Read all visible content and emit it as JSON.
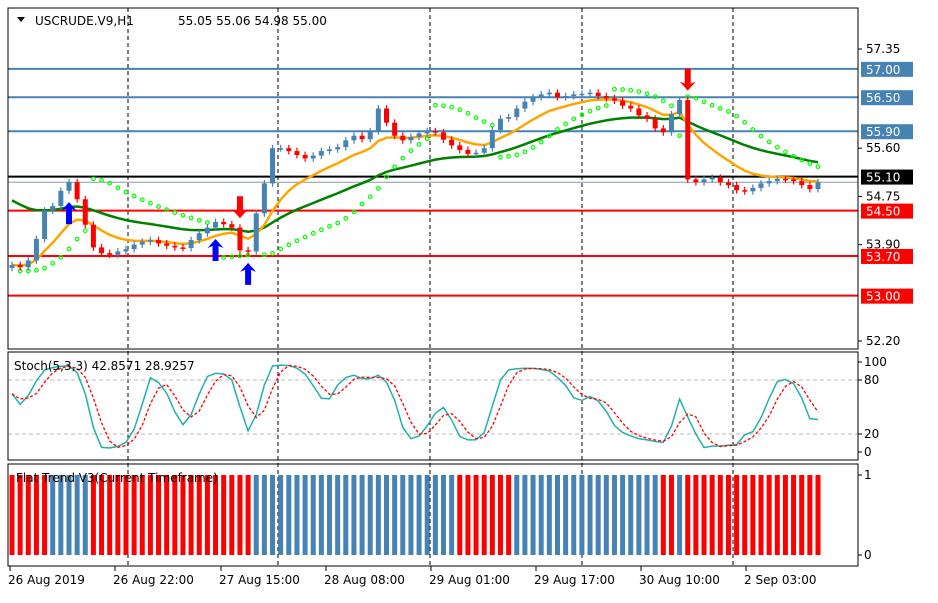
{
  "header": {
    "menu_icon": "triangle-down-icon",
    "symbol": "USCRUDE.V9,H1",
    "ohlc": "55.05 55.06 54.98 55.00"
  },
  "colors": {
    "bull": "#4682b4",
    "bear": "#ff0000",
    "ma_fast": "#ffa500",
    "ma_slow": "#008000",
    "sar": "#00ff00",
    "stoch_main": "#20b2aa",
    "stoch_signal": "#ff0000",
    "level_blue": "#4682b4",
    "level_red": "#ff0000",
    "level_black": "#000000"
  },
  "chart_data": [
    {
      "type": "candlestick",
      "title": "USCRUDE.V9,H1",
      "price_ticks": [
        "57.35",
        "55.60",
        "54.75",
        "53.90",
        "52.20"
      ],
      "price_tick_values": [
        57.35,
        55.6,
        54.75,
        53.9,
        52.2
      ],
      "ylim": [
        52.2,
        57.35
      ],
      "time_labels": [
        "26 Aug 2019",
        "26 Aug 22:00",
        "27 Aug 15:00",
        "28 Aug 08:00",
        "29 Aug 01:00",
        "29 Aug 17:00",
        "30 Aug 10:00",
        "2 Sep 03:00"
      ],
      "grid": "vertical dashed",
      "close": [
        53.54,
        53.5,
        53.62,
        54.0,
        54.5,
        54.58,
        54.85,
        55.0,
        54.7,
        54.25,
        53.85,
        53.75,
        53.72,
        53.78,
        53.82,
        53.9,
        53.95,
        53.98,
        53.92,
        53.88,
        53.85,
        53.84,
        53.98,
        54.1,
        54.2,
        54.3,
        54.26,
        54.2,
        53.8,
        53.78,
        54.45,
        54.98,
        55.6,
        55.6,
        55.55,
        55.48,
        55.42,
        55.47,
        55.55,
        55.58,
        55.62,
        55.74,
        55.82,
        55.76,
        55.9,
        56.3,
        56.05,
        55.82,
        55.74,
        55.8,
        55.86,
        55.9,
        55.88,
        55.75,
        55.65,
        55.57,
        55.5,
        55.52,
        55.6,
        55.92,
        56.12,
        56.15,
        56.3,
        56.42,
        56.5,
        56.55,
        56.58,
        56.5,
        56.52,
        56.55,
        56.56,
        56.58,
        56.52,
        56.48,
        56.44,
        56.35,
        56.3,
        56.18,
        56.12,
        55.95,
        55.88,
        56.2,
        56.45,
        55.05,
        55.0,
        55.05,
        55.08,
        55.0,
        54.95,
        54.86,
        54.84,
        54.9,
        54.98,
        55.02,
        55.06,
        55.05,
        55.02,
        54.95,
        54.88,
        55.0
      ],
      "levels": [
        {
          "price": 57.0,
          "label": "57.00",
          "color": "#4682b4"
        },
        {
          "price": 56.5,
          "label": "56.50",
          "color": "#4682b4"
        },
        {
          "price": 55.9,
          "label": "55.90",
          "color": "#4682b4"
        },
        {
          "price": 55.1,
          "label": "55.10",
          "color": "#000000"
        },
        {
          "price": 54.5,
          "label": "54.50",
          "color": "#ff0000"
        },
        {
          "price": 53.7,
          "label": "53.70",
          "color": "#ff0000"
        },
        {
          "price": 53.0,
          "label": "53.00",
          "color": "#ff0000"
        }
      ],
      "bid_line": 55.0,
      "signals": [
        {
          "bar": 7,
          "type": "buy-arrow"
        },
        {
          "bar": 25,
          "type": "buy-arrow"
        },
        {
          "bar": 29,
          "type": "buy-arrow"
        },
        {
          "bar": 28,
          "type": "sell-arrow"
        },
        {
          "bar": 83,
          "type": "sell-arrow"
        }
      ],
      "overlays": [
        "moving-average-fast",
        "moving-average-slow",
        "parabolic-sar"
      ]
    },
    {
      "type": "line",
      "title": "Stoch(5,3,3) 42.8571 28.9257",
      "ticks": [
        "100",
        "80",
        "20",
        "0"
      ],
      "tick_values": [
        100,
        80,
        20,
        0
      ],
      "ylim": [
        0,
        100
      ],
      "levels": [
        80,
        20
      ]
    },
    {
      "type": "bar",
      "title": "Flat Trend V3(Current Timeframe)",
      "ticks": [
        "1",
        "0"
      ],
      "tick_values": [
        1,
        0
      ],
      "ylim": [
        0,
        1
      ],
      "trend": "RRRRRBBBBBRRRRRRRRRRRRRRRRRRRRBBBBBBBBBBBBBBBBBBBBBBBBBRRRRRRRBBBBBBBBBBBBBBBBBBRRBRRRRRRRRRRRRRRRRR"
    }
  ]
}
